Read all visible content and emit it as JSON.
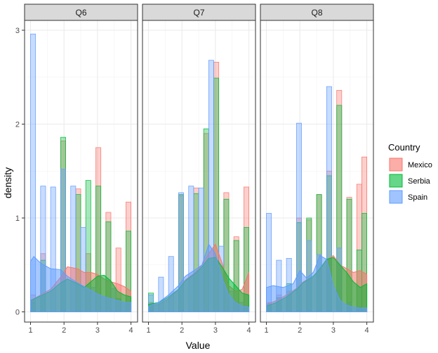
{
  "chart_data": {
    "type": "histogram",
    "xlabel": "Value",
    "ylabel": "density",
    "xlim": [
      0.9,
      4.15
    ],
    "ylim": [
      -0.06,
      3.1
    ],
    "x_ticks": [
      1,
      2,
      3,
      4
    ],
    "y_ticks": [
      0,
      1,
      2,
      3
    ],
    "bin_edges": [
      1.0,
      1.15,
      1.3,
      1.45,
      1.6,
      1.75,
      1.9,
      2.05,
      2.2,
      2.35,
      2.5,
      2.65,
      2.8,
      2.95,
      3.1,
      3.25,
      3.4,
      3.55,
      3.7,
      3.85,
      4.0
    ],
    "legend": {
      "title": "Country",
      "position": "right",
      "entries": [
        {
          "name": "Mexico",
          "fill": "#F8766D"
        },
        {
          "name": "Serbia",
          "fill": "#00BA38"
        },
        {
          "name": "Spain",
          "fill": "#619CFF"
        }
      ]
    },
    "grid": true,
    "panels": [
      {
        "title": "Q6",
        "histograms": [
          {
            "name": "Mexico",
            "values": [
              0.18,
              0,
              0.62,
              0,
              0,
              0,
              1.82,
              0,
              0,
              1.31,
              0,
              0.62,
              0,
              1.75,
              0,
              1.06,
              0,
              0.68,
              0,
              1.17
            ]
          },
          {
            "name": "Serbia",
            "values": [
              0.1,
              0,
              0.55,
              0,
              0,
              0,
              1.86,
              0,
              0,
              1.25,
              0,
              1.4,
              0,
              1.34,
              0,
              0.96,
              0,
              0.14,
              0,
              0.86
            ]
          },
          {
            "name": "Spain",
            "values": [
              2.96,
              0,
              1.34,
              0,
              1.33,
              0,
              1.52,
              0,
              1.34,
              0,
              0.9,
              0,
              0.26,
              0,
              0.16,
              0,
              0.25,
              0,
              0.1,
              0
            ]
          }
        ],
        "densities": [
          {
            "name": "Mexico",
            "x": [
              1.0,
              1.3,
              1.6,
              1.9,
              2.1,
              2.4,
              2.6,
              2.8,
              3.0,
              3.2,
              3.4,
              3.6,
              3.8,
              4.0
            ],
            "y": [
              0.12,
              0.18,
              0.24,
              0.37,
              0.48,
              0.46,
              0.42,
              0.42,
              0.4,
              0.35,
              0.32,
              0.3,
              0.27,
              0.22
            ]
          },
          {
            "name": "Serbia",
            "x": [
              1.0,
              1.3,
              1.6,
              1.9,
              2.1,
              2.4,
              2.6,
              2.8,
              3.0,
              3.2,
              3.4,
              3.6,
              3.8,
              4.0
            ],
            "y": [
              0.12,
              0.17,
              0.22,
              0.31,
              0.35,
              0.3,
              0.26,
              0.32,
              0.38,
              0.39,
              0.33,
              0.22,
              0.18,
              0.16
            ]
          },
          {
            "name": "Spain",
            "x": [
              1.0,
              1.1,
              1.3,
              1.6,
              1.9,
              2.1,
              2.4,
              2.6,
              2.8,
              3.0,
              3.2,
              3.4,
              3.6,
              3.8,
              4.0
            ],
            "y": [
              0.54,
              0.59,
              0.52,
              0.46,
              0.45,
              0.38,
              0.31,
              0.27,
              0.23,
              0.19,
              0.16,
              0.14,
              0.12,
              0.1,
              0.1
            ]
          }
        ]
      },
      {
        "title": "Q7",
        "histograms": [
          {
            "name": "Mexico",
            "values": [
              0.1,
              0,
              0,
              0,
              0,
              0,
              1.24,
              0,
              0,
              1.32,
              0,
              1.9,
              0,
              2.66,
              0,
              1.27,
              0,
              0.8,
              0,
              1.33
            ]
          },
          {
            "name": "Serbia",
            "values": [
              0.2,
              0,
              0,
              0,
              0,
              0,
              1.25,
              0,
              0,
              1.26,
              0,
              1.95,
              0,
              2.49,
              0,
              1.2,
              0,
              0.76,
              0,
              0.9
            ]
          },
          {
            "name": "Spain",
            "values": [
              0.18,
              0,
              0.37,
              0,
              0.59,
              0,
              1.27,
              0,
              1.34,
              0,
              1.32,
              0,
              2.68,
              0,
              0.7,
              0,
              0.22,
              0,
              0.1,
              0
            ]
          }
        ],
        "densities": [
          {
            "name": "Mexico",
            "x": [
              1.0,
              1.3,
              1.6,
              1.9,
              2.1,
              2.4,
              2.6,
              2.8,
              3.0,
              3.2,
              3.4,
              3.6,
              3.8,
              4.0
            ],
            "y": [
              0.06,
              0.08,
              0.14,
              0.24,
              0.34,
              0.42,
              0.5,
              0.62,
              0.72,
              0.52,
              0.28,
              0.22,
              0.24,
              0.42
            ]
          },
          {
            "name": "Serbia",
            "x": [
              1.0,
              1.3,
              1.6,
              1.9,
              2.1,
              2.4,
              2.6,
              2.8,
              3.0,
              3.2,
              3.4,
              3.6,
              3.8,
              4.0
            ],
            "y": [
              0.08,
              0.1,
              0.16,
              0.24,
              0.33,
              0.41,
              0.48,
              0.57,
              0.58,
              0.48,
              0.36,
              0.28,
              0.2,
              0.18
            ]
          },
          {
            "name": "Spain",
            "x": [
              1.0,
              1.3,
              1.6,
              1.9,
              2.1,
              2.4,
              2.6,
              2.8,
              3.0,
              3.2,
              3.4,
              3.6,
              3.8,
              4.0
            ],
            "y": [
              0.06,
              0.1,
              0.18,
              0.28,
              0.38,
              0.45,
              0.5,
              0.72,
              0.62,
              0.36,
              0.18,
              0.1,
              0.06,
              0.05
            ]
          }
        ]
      },
      {
        "title": "Q8",
        "histograms": [
          {
            "name": "Mexico",
            "values": [
              0.1,
              0,
              0.18,
              0,
              0.22,
              0,
              1.0,
              0,
              0.98,
              0,
              1.25,
              0,
              1.5,
              0,
              2.36,
              0,
              1.22,
              0,
              1.36,
              1.65
            ]
          },
          {
            "name": "Serbia",
            "values": [
              0.08,
              0,
              0.15,
              0,
              0.3,
              0,
              0.95,
              0,
              1.0,
              0,
              1.25,
              0,
              1.45,
              0,
              2.2,
              0,
              1.2,
              0,
              0.66,
              1.05
            ]
          },
          {
            "name": "Spain",
            "values": [
              1.05,
              0,
              0.55,
              0,
              0.57,
              0,
              2.01,
              0,
              0.76,
              0,
              0.61,
              0,
              2.4,
              0,
              0.68,
              0,
              0.1,
              0,
              0.05,
              0
            ]
          }
        ],
        "densities": [
          {
            "name": "Mexico",
            "x": [
              1.0,
              1.3,
              1.6,
              1.9,
              2.1,
              2.4,
              2.6,
              2.8,
              3.0,
              3.2,
              3.4,
              3.6,
              3.8,
              4.0
            ],
            "y": [
              0.08,
              0.12,
              0.18,
              0.25,
              0.32,
              0.38,
              0.45,
              0.55,
              0.6,
              0.5,
              0.46,
              0.42,
              0.44,
              0.4
            ]
          },
          {
            "name": "Serbia",
            "x": [
              1.0,
              1.3,
              1.6,
              1.9,
              2.1,
              2.4,
              2.6,
              2.8,
              3.0,
              3.2,
              3.4,
              3.6,
              3.8,
              4.0
            ],
            "y": [
              0.06,
              0.1,
              0.16,
              0.24,
              0.31,
              0.38,
              0.46,
              0.56,
              0.58,
              0.5,
              0.42,
              0.32,
              0.26,
              0.3
            ]
          },
          {
            "name": "Spain",
            "x": [
              1.0,
              1.2,
              1.5,
              1.8,
              2.0,
              2.2,
              2.4,
              2.6,
              2.8,
              3.0,
              3.2,
              3.4,
              3.6,
              3.8,
              4.0
            ],
            "y": [
              0.26,
              0.28,
              0.26,
              0.3,
              0.44,
              0.36,
              0.42,
              0.6,
              0.56,
              0.28,
              0.12,
              0.07,
              0.05,
              0.04,
              0.04
            ]
          }
        ]
      }
    ]
  }
}
